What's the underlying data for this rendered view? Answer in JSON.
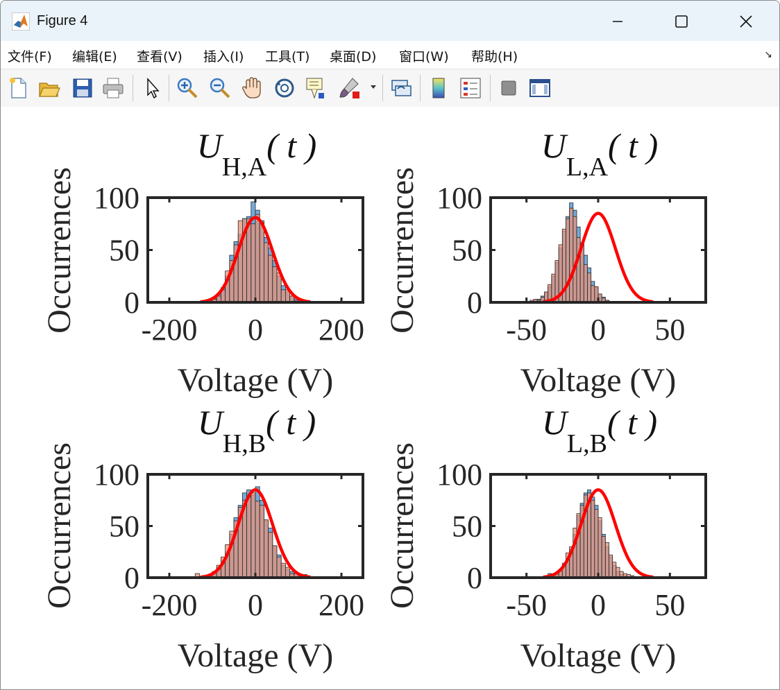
{
  "window": {
    "title": "Figure 4"
  },
  "menu": [
    "文件(F)",
    "编辑(E)",
    "查看(V)",
    "插入(I)",
    "工具(T)",
    "桌面(D)",
    "窗口(W)",
    "帮助(H)"
  ],
  "toolbar": [
    "new-file",
    "open-folder",
    "save",
    "print",
    "select-arrow",
    "zoom-in",
    "zoom-out",
    "pan-hand",
    "rotate-3d",
    "data-tips",
    "brush",
    "link",
    "colorbar",
    "legend",
    "hide-plot-tools",
    "show-plot-tools"
  ],
  "colors": {
    "series_blue": "#5b9bd3",
    "series_orange": "#e8937a",
    "overlap": "#a87f71",
    "fit_curve": "#ff0000",
    "axes": "#262626"
  },
  "chart_data": [
    {
      "type": "bar",
      "title_main": "U",
      "title_sub": "H,A",
      "title_arg": "( t )",
      "xlabel": "Voltage (V)",
      "ylabel": "Occurrences",
      "xlim": [
        -250,
        250
      ],
      "ylim": [
        0,
        100
      ],
      "xticks": [
        -200,
        0,
        200
      ],
      "yticks": [
        0,
        50,
        100
      ],
      "bin_start": -200,
      "bin_width": 10,
      "series": [
        {
          "values": [
            0,
            0,
            0,
            0,
            0,
            0,
            0,
            0,
            1,
            2,
            4,
            8,
            14,
            25,
            45,
            58,
            65,
            80,
            82,
            96,
            88,
            78,
            62,
            52,
            40,
            25,
            16,
            10,
            6,
            4,
            2,
            2,
            1,
            1,
            0,
            0,
            0,
            1,
            0,
            0
          ]
        },
        {
          "values": [
            0,
            0,
            0,
            0,
            0,
            0,
            1,
            0,
            1,
            1,
            3,
            6,
            12,
            30,
            40,
            55,
            78,
            80,
            80,
            75,
            84,
            76,
            57,
            45,
            34,
            28,
            12,
            12,
            6,
            2,
            3,
            2,
            1,
            0,
            0,
            0,
            0,
            0,
            0,
            0
          ]
        }
      ],
      "fit": {
        "mean": 0,
        "std": 40,
        "peak": 81
      }
    },
    {
      "type": "bar",
      "title_main": "U",
      "title_sub": "L,A",
      "title_arg": "( t )",
      "xlabel": "Voltage (V)",
      "ylabel": "Occurrences",
      "xlim": [
        -75,
        75
      ],
      "ylim": [
        0,
        100
      ],
      "xticks": [
        -50,
        0,
        50
      ],
      "yticks": [
        0,
        50,
        100
      ],
      "bin_start": -55,
      "bin_width": 2.5,
      "series": [
        {
          "values": [
            0,
            0,
            1,
            1,
            2,
            3,
            6,
            9,
            15,
            25,
            38,
            52,
            68,
            82,
            95,
            88,
            72,
            56,
            45,
            33,
            20,
            14,
            8,
            5,
            2,
            1,
            0,
            0,
            0,
            0,
            0,
            0,
            0,
            0,
            0,
            0,
            0,
            0,
            0,
            0,
            0,
            0,
            0,
            0
          ]
        },
        {
          "values": [
            0,
            0,
            1,
            2,
            3,
            2,
            5,
            10,
            17,
            27,
            40,
            55,
            70,
            80,
            90,
            82,
            62,
            57,
            36,
            28,
            16,
            15,
            8,
            4,
            2,
            1,
            1,
            0,
            0,
            0,
            0,
            0,
            0,
            0,
            0,
            0,
            0,
            0,
            0,
            0,
            0,
            0,
            0,
            0
          ]
        }
      ],
      "fit": {
        "mean": 0,
        "std": 12,
        "peak": 85
      }
    },
    {
      "type": "bar",
      "title_main": "U",
      "title_sub": "H,B",
      "title_arg": "( t )",
      "xlabel": "Voltage (V)",
      "ylabel": "Occurrences",
      "xlim": [
        -250,
        250
      ],
      "ylim": [
        0,
        100
      ],
      "xticks": [
        -200,
        0,
        200
      ],
      "yticks": [
        0,
        50,
        100
      ],
      "bin_start": -200,
      "bin_width": 10,
      "series": [
        {
          "values": [
            0,
            0,
            0,
            0,
            0,
            0,
            0,
            0,
            1,
            2,
            6,
            10,
            17,
            25,
            42,
            58,
            70,
            82,
            85,
            80,
            88,
            75,
            55,
            48,
            30,
            22,
            12,
            8,
            6,
            4,
            3,
            2,
            1,
            0,
            0,
            0,
            0,
            0,
            0,
            0
          ]
        },
        {
          "values": [
            0,
            0,
            0,
            0,
            0,
            0,
            4,
            0,
            2,
            3,
            5,
            12,
            20,
            32,
            45,
            55,
            68,
            75,
            78,
            82,
            74,
            70,
            56,
            44,
            31,
            20,
            14,
            10,
            4,
            4,
            2,
            3,
            1,
            0,
            0,
            0,
            0,
            0,
            0,
            0
          ]
        }
      ],
      "fit": {
        "mean": 0,
        "std": 40,
        "peak": 85
      }
    },
    {
      "type": "bar",
      "title_main": "U",
      "title_sub": "L,B",
      "title_arg": "( t )",
      "xlabel": "Voltage (V)",
      "ylabel": "Occurrences",
      "xlim": [
        -75,
        75
      ],
      "ylim": [
        0,
        100
      ],
      "xticks": [
        -50,
        0,
        50
      ],
      "yticks": [
        0,
        50,
        100
      ],
      "bin_start": -55,
      "bin_width": 2.5,
      "series": [
        {
          "values": [
            0,
            0,
            0,
            0,
            0,
            0,
            0,
            0,
            4,
            1,
            3,
            6,
            10,
            18,
            28,
            42,
            60,
            72,
            82,
            85,
            78,
            70,
            55,
            42,
            30,
            20,
            12,
            6,
            3,
            2,
            1,
            0,
            0,
            0,
            0,
            0,
            0,
            0,
            0,
            0,
            0,
            0,
            0,
            0
          ]
        },
        {
          "values": [
            0,
            0,
            0,
            0,
            0,
            0,
            0,
            0,
            0,
            1,
            4,
            8,
            14,
            24,
            30,
            48,
            62,
            70,
            80,
            82,
            75,
            66,
            58,
            40,
            34,
            22,
            15,
            10,
            6,
            4,
            3,
            2,
            1,
            0,
            0,
            0,
            0,
            0,
            0,
            0,
            0,
            0,
            0,
            0
          ]
        }
      ],
      "fit": {
        "mean": 0,
        "std": 12,
        "peak": 85
      }
    }
  ]
}
